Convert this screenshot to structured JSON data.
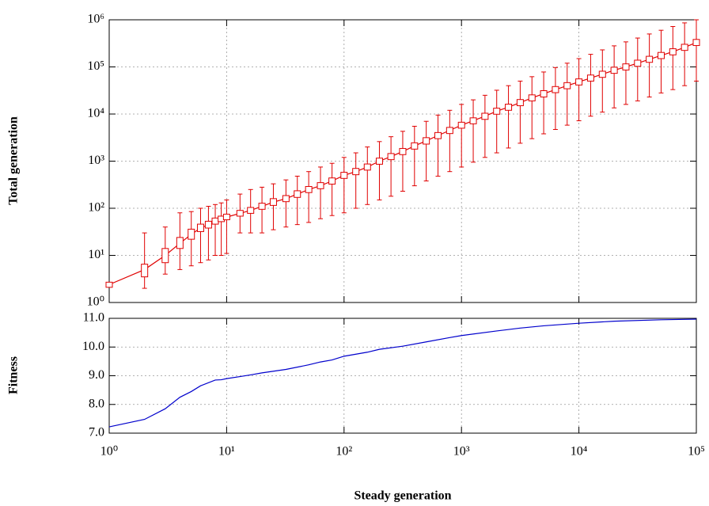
{
  "chart_data": [
    {
      "type": "box",
      "ylabel": "Total generation",
      "log_x": true,
      "log_y": true,
      "grid": true,
      "color": "#e00000",
      "xlim": [
        1,
        100000
      ],
      "xticks": [
        1,
        10,
        100,
        1000,
        10000,
        100000
      ],
      "ylim": [
        1,
        1000000
      ],
      "yticks": [
        {
          "value": 1,
          "label": "10⁰"
        },
        {
          "value": 10,
          "label": "10¹"
        },
        {
          "value": 100,
          "label": "10²"
        },
        {
          "value": 1000,
          "label": "10³"
        },
        {
          "value": 10000,
          "label": "10⁴"
        },
        {
          "value": 100000,
          "label": "10⁵"
        },
        {
          "value": 1000000,
          "label": "10⁶"
        }
      ],
      "x": [
        1,
        2,
        3,
        4,
        5,
        6,
        7,
        8,
        9,
        10,
        13,
        16,
        20,
        25,
        32,
        40,
        50,
        63,
        79,
        100,
        126,
        158,
        200,
        251,
        316,
        398,
        501,
        631,
        794,
        1000,
        1259,
        1585,
        1995,
        2512,
        3162,
        3981,
        5012,
        6310,
        7943,
        10000,
        12589,
        15849,
        19953,
        25119,
        31623,
        39811,
        50119,
        63096,
        79433,
        100000
      ],
      "median": [
        2.4,
        5,
        10,
        18,
        28,
        38,
        45,
        53,
        60,
        65,
        78,
        90,
        110,
        135,
        160,
        200,
        250,
        300,
        380,
        500,
        600,
        750,
        1000,
        1250,
        1600,
        2100,
        2700,
        3500,
        4500,
        5800,
        7200,
        9000,
        11500,
        14000,
        17500,
        22000,
        27000,
        33000,
        40000,
        48000,
        58000,
        70000,
        85000,
        100000,
        120000,
        145000,
        175000,
        210000,
        260000,
        330000
      ],
      "q1": [
        2.1,
        3.5,
        7,
        14,
        22,
        32,
        38,
        46,
        52,
        57,
        68,
        78,
        95,
        115,
        138,
        170,
        215,
        260,
        325,
        430,
        515,
        645,
        860,
        1075,
        1375,
        1800,
        2300,
        3000,
        3850,
        5000,
        6200,
        7700,
        9900,
        12000,
        15000,
        19000,
        23000,
        28400,
        34400,
        41300,
        50000,
        60000,
        73000,
        86000,
        103000,
        125000,
        150000,
        180000,
        224000,
        284000
      ],
      "q3": [
        2.7,
        6.5,
        14,
        24,
        36,
        46,
        53,
        62,
        68,
        75,
        90,
        104,
        128,
        160,
        186,
        235,
        290,
        350,
        440,
        580,
        700,
        870,
        1160,
        1450,
        1860,
        2450,
        3150,
        4050,
        5200,
        6700,
        8300,
        10400,
        13300,
        16200,
        20300,
        25500,
        31300,
        38300,
        46400,
        55700,
        67300,
        81000,
        98600,
        116000,
        139000,
        168000,
        203000,
        243000,
        302000,
        383000
      ],
      "low": [
        2.4,
        2,
        4,
        5,
        6,
        7,
        8,
        10,
        10,
        11,
        30,
        30,
        30,
        35,
        40,
        45,
        50,
        60,
        70,
        80,
        100,
        120,
        150,
        180,
        230,
        300,
        380,
        480,
        600,
        750,
        950,
        1200,
        1500,
        1900,
        2400,
        3000,
        3800,
        4700,
        5800,
        7200,
        9000,
        11000,
        13500,
        16000,
        19000,
        23000,
        28000,
        33000,
        40000,
        50000
      ],
      "high": [
        2.4,
        30,
        40,
        80,
        85,
        100,
        110,
        120,
        130,
        150,
        200,
        250,
        280,
        330,
        400,
        480,
        600,
        750,
        900,
        1200,
        1500,
        2000,
        2600,
        3300,
        4300,
        5500,
        7000,
        9500,
        12000,
        16000,
        20000,
        25000,
        32000,
        40000,
        50000,
        62000,
        78000,
        97000,
        120000,
        150000,
        185000,
        230000,
        280000,
        340000,
        410000,
        500000,
        600000,
        720000,
        860000,
        1000000
      ]
    },
    {
      "type": "line",
      "ylabel": "Fitness",
      "xlabel": "Steady generation",
      "log_x": true,
      "grid": true,
      "color": "#0000cc",
      "xlim": [
        1,
        100000
      ],
      "xticks": [
        {
          "value": 1,
          "label": "10⁰"
        },
        {
          "value": 10,
          "label": "10¹"
        },
        {
          "value": 100,
          "label": "10²"
        },
        {
          "value": 1000,
          "label": "10³"
        },
        {
          "value": 10000,
          "label": "10⁴"
        },
        {
          "value": 100000,
          "label": "10⁵"
        }
      ],
      "ylim": [
        7,
        11
      ],
      "yticks": [
        {
          "value": 7,
          "label": "7.0"
        },
        {
          "value": 8,
          "label": "8.0"
        },
        {
          "value": 9,
          "label": "9.0"
        },
        {
          "value": 10,
          "label": "10.0"
        },
        {
          "value": 11,
          "label": "11.0"
        }
      ],
      "x": [
        1,
        2,
        3,
        4,
        5,
        6,
        8,
        9,
        10,
        13,
        16,
        20,
        32,
        50,
        63,
        79,
        100,
        158,
        200,
        316,
        501,
        794,
        1000,
        1995,
        3162,
        5012,
        10000,
        19953,
        50119,
        100000
      ],
      "values": [
        7.22,
        7.48,
        7.85,
        8.25,
        8.45,
        8.65,
        8.85,
        8.86,
        8.9,
        8.97,
        9.03,
        9.1,
        9.22,
        9.38,
        9.48,
        9.55,
        9.68,
        9.82,
        9.92,
        10.03,
        10.18,
        10.33,
        10.4,
        10.56,
        10.66,
        10.74,
        10.83,
        10.9,
        10.95,
        10.97
      ]
    }
  ]
}
